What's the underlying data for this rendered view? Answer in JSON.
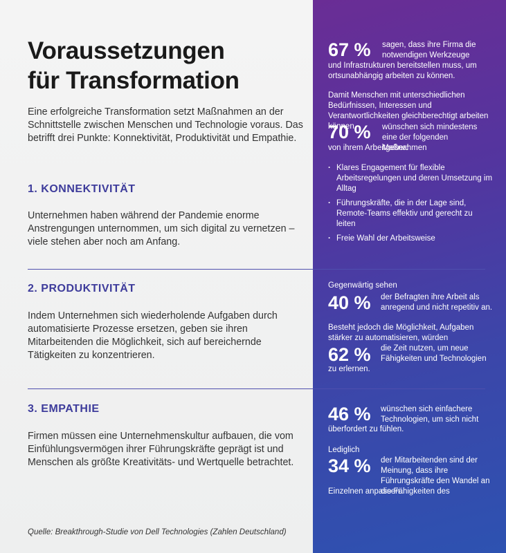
{
  "title_line1": "Voraussetzungen",
  "title_line2": "für Transformation",
  "intro": "Eine erfolgreiche Transformation setzt Maßnahmen an der Schnittstelle zwischen Menschen und Technologie voraus. Das betrifft drei Punkte: Konnektivität, Produktivität und Empathie.",
  "sections": [
    {
      "heading": "1. KONNEKTIVITÄT",
      "body": "Unternehmen haben während der Pandemie enorme Anstrengungen unternommen, um sich digital zu vernetzen – viele stehen aber noch am Anfang."
    },
    {
      "heading": "2. PRODUKTIVITÄT",
      "body": "Indem Unternehmen sich wiederholende Aufgaben durch automatisierte Prozesse ersetzen, geben sie ihren Mitarbeitenden die Möglichkeit, sich auf bereichernde Tätigkeiten zu konzentrieren."
    },
    {
      "heading": "3. EMPATHIE",
      "body": "Firmen müssen eine Unternehmenskultur aufbauen, die vom Einfühlungsvermögen ihrer Führungskräfte geprägt ist und Menschen als größte Kreativitäts- und Wertquelle betrachtet."
    }
  ],
  "source": "Quelle: Breakthrough-Studie von Dell Technologies (Zahlen Deutschland)",
  "stats": {
    "s67": {
      "value": "67 %",
      "text_side": "sagen, dass ihre Firma die notwendigen Werkzeuge",
      "text_below": "und Infrastrukturen bereitstellen muss, um ortsunabhängig arbeiten zu können."
    },
    "s70": {
      "lead": "Damit Menschen mit unterschiedlichen Bedürfnissen, Interessen und Verantwortlichkeiten gleichberechtigt arbeiten können,",
      "value": "70 %",
      "text_side": "wünschen sich mindestens eine der folgenden Maßnahmen",
      "text_below": "von ihrem Arbeitgeber:",
      "bullets": [
        "Klares Engagement für flexible Arbeitsregelungen und deren Umsetzung im Alltag",
        "Führungskräfte, die in der Lage sind, Remote-Teams effektiv und gerecht zu leiten",
        "Freie Wahl der Arbeitsweise"
      ]
    },
    "s40": {
      "lead": "Gegenwärtig sehen",
      "value": "40 %",
      "text_side": "der Befragten ihre Arbeit als anregend und nicht repetitiv an."
    },
    "s62": {
      "lead": "Besteht jedoch die Möglichkeit, Aufgaben stärker zu automatisieren, würden",
      "value": "62 %",
      "text_side": "die Zeit nutzen, um neue Fähigkeiten und Technologien",
      "text_below": "zu erlernen."
    },
    "s46": {
      "value": "46 %",
      "text_side": "wünschen sich einfachere Technologien, um sich nicht",
      "text_below": "überfordert zu fühlen."
    },
    "s34": {
      "lead": "Lediglich",
      "value": "34 %",
      "text_side": "der Mitarbeitenden sind der Meinung, dass ihre Führungskräfte den Wandel an die Fähigkeiten des",
      "text_below": "Einzelnen anpassen."
    }
  },
  "colors": {
    "accent_heading": "#3e3c9b",
    "panel_top": "#6a2d95",
    "panel_bottom": "#2d52b1",
    "divider": "#4f4fae"
  }
}
